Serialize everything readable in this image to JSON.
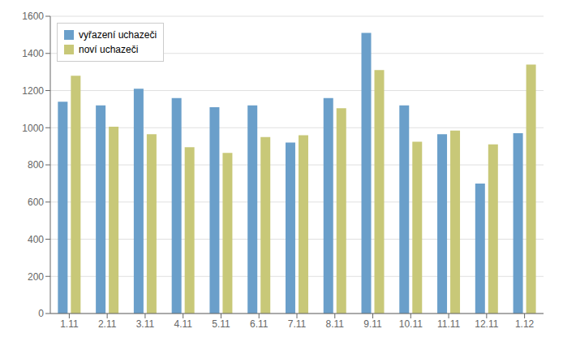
{
  "chart_data": {
    "type": "bar",
    "categories": [
      "1.11",
      "2.11",
      "3.11",
      "4.11",
      "5.11",
      "6.11",
      "7.11",
      "8.11",
      "9.11",
      "10.11",
      "11.11",
      "12.11",
      "1.12"
    ],
    "series": [
      {
        "name": "vyřazení uchazeči",
        "color": "#6A9FCA",
        "values": [
          1140,
          1120,
          1210,
          1160,
          1110,
          1120,
          920,
          1160,
          1510,
          1120,
          965,
          700,
          970
        ]
      },
      {
        "name": "noví uchazeči",
        "color": "#C8C878",
        "values": [
          1280,
          1005,
          965,
          895,
          865,
          950,
          960,
          1105,
          1310,
          925,
          985,
          910,
          1340
        ]
      }
    ],
    "ylim": [
      0,
      1600
    ],
    "yticks": [
      0,
      200,
      400,
      600,
      800,
      1000,
      1200,
      1400,
      1600
    ],
    "grid": true,
    "legend": "upper left"
  }
}
